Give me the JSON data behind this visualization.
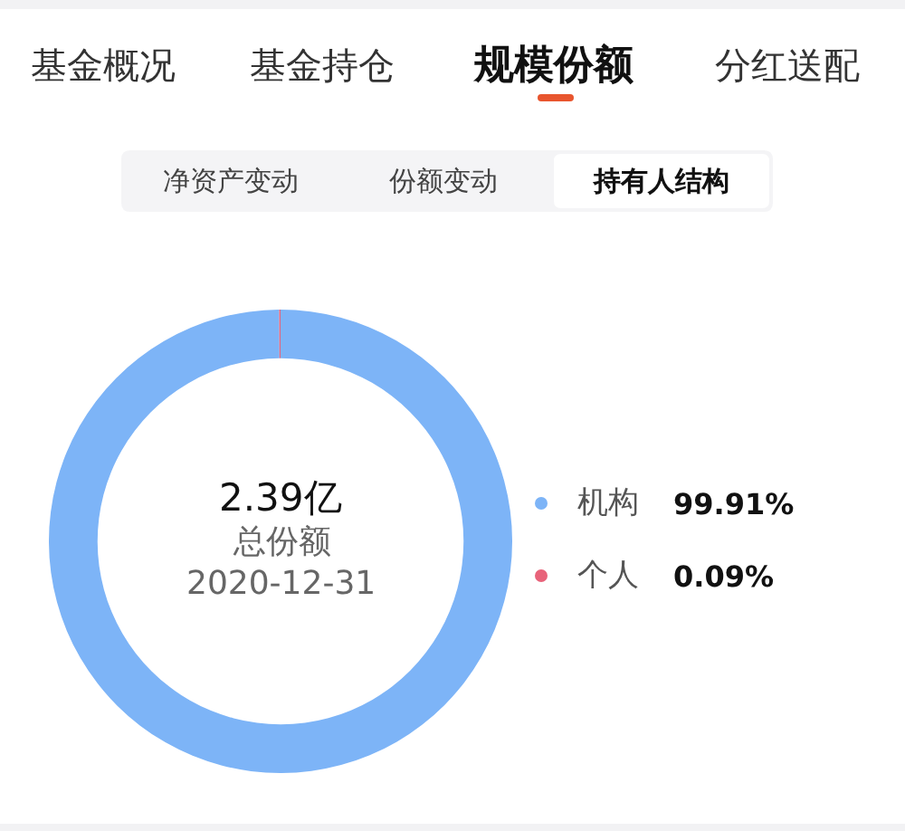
{
  "chart_data": {
    "type": "donut",
    "categories": [
      "机构",
      "个人"
    ],
    "values": [
      99.91,
      0.09
    ],
    "colors": [
      "#7db4f7",
      "#e8637a"
    ],
    "value_labels": [
      "99.91%",
      "0.09%"
    ],
    "legend": "right",
    "annotations": [
      "基金概况",
      "基金持仓",
      "规模份额",
      "分红送配",
      "净资产变动",
      "份额变动",
      "持有人结构",
      "2.39亿",
      "总份额",
      "2020-12-31"
    ]
  }
}
